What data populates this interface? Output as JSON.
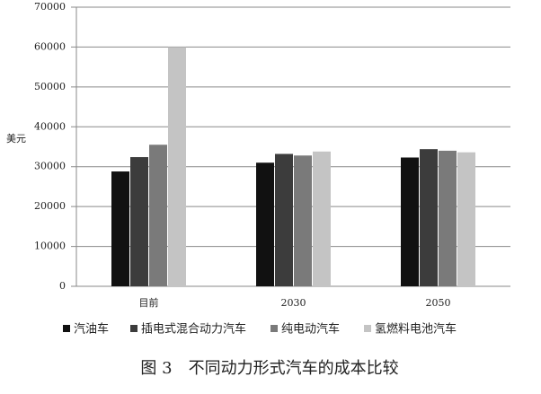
{
  "chart_data": {
    "type": "bar",
    "title": "图 3　不同动力形式汽车的成本比较",
    "y_label": "美元",
    "categories": [
      "目前",
      "2030",
      "2050"
    ],
    "series": [
      {
        "name": "汽油车",
        "color": "#111111",
        "values": [
          28800,
          31000,
          32300
        ]
      },
      {
        "name": "插电式混合动力汽车",
        "color": "#3c3c3c",
        "values": [
          32400,
          33200,
          34400
        ]
      },
      {
        "name": "纯电动汽车",
        "color": "#7a7a7a",
        "values": [
          35500,
          32800,
          34000
        ]
      },
      {
        "name": "氢燃料电池汽车",
        "color": "#c4c4c4",
        "values": [
          60000,
          33800,
          33600
        ]
      }
    ],
    "ylim": [
      0,
      70000
    ],
    "yticks": [
      0,
      10000,
      20000,
      30000,
      40000,
      50000,
      60000,
      70000
    ],
    "grid": true
  }
}
